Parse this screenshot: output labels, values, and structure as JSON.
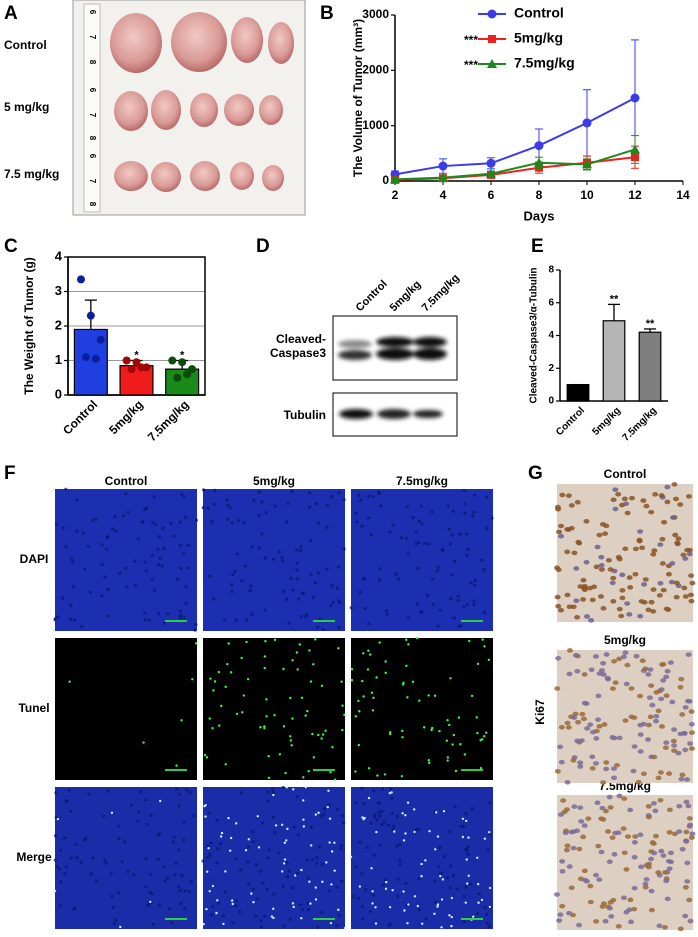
{
  "panel_letters": [
    "A",
    "B",
    "C",
    "D",
    "E",
    "F",
    "G"
  ],
  "photo": {
    "row_labels": [
      "Control",
      "5 mg/kg",
      "7.5 mg/kg"
    ],
    "ruler_labels": [
      "6",
      "7",
      "8"
    ]
  },
  "chart_data": [
    {
      "type": "line",
      "ylabel": "The Volume of Tumor (mm³)",
      "xlabel": "Days",
      "x": [
        2,
        4,
        6,
        8,
        10,
        12
      ],
      "xlim": [
        2,
        14
      ],
      "xticks": [
        2,
        4,
        6,
        8,
        10,
        12,
        14
      ],
      "ylim": [
        0,
        3000
      ],
      "yticks": [
        0,
        1000,
        2000,
        3000
      ],
      "series": [
        {
          "name": "Control",
          "color": "#3b3be8",
          "marker": "circle",
          "values": [
            120,
            270,
            320,
            640,
            1050,
            1500
          ],
          "errors": [
            60,
            130,
            100,
            300,
            600,
            1050
          ]
        },
        {
          "name": "5mg/kg",
          "color": "#f02020",
          "marker": "square",
          "values": [
            20,
            50,
            110,
            240,
            330,
            430
          ],
          "errors": [
            15,
            40,
            50,
            100,
            120,
            200
          ]
        },
        {
          "name": "7.5mg/kg",
          "color": "#1b8a1b",
          "marker": "triangle",
          "values": [
            30,
            60,
            130,
            330,
            300,
            570
          ],
          "errors": [
            20,
            40,
            50,
            100,
            100,
            250
          ]
        }
      ],
      "annotations": [
        {
          "series": "5mg/kg",
          "text": "***"
        },
        {
          "series": "7.5mg/kg",
          "text": "***"
        }
      ]
    },
    {
      "type": "bar",
      "ylabel": "The Weight of Tumor (g)",
      "categories": [
        "Control",
        "5mg/kg",
        "7.5mg/kg"
      ],
      "values": [
        1.9,
        0.85,
        0.75
      ],
      "errors": [
        0.85,
        0.15,
        0.25
      ],
      "points": [
        [
          3.35,
          2.3,
          1.6,
          1.1,
          1.05
        ],
        [
          1.0,
          0.95,
          0.8,
          0.75,
          0.8
        ],
        [
          1.0,
          0.95,
          0.75,
          0.5,
          0.6
        ]
      ],
      "colors": [
        "#1f3fe0",
        "#f01c1c",
        "#1a8a1a"
      ],
      "point_colors": [
        "#0a1f9e",
        "#a00808",
        "#0a4d0a"
      ],
      "ylim": [
        0,
        4
      ],
      "yticks": [
        0,
        1,
        2,
        3,
        4
      ],
      "grid": true,
      "frame": true,
      "annotations": [
        {
          "category": "5mg/kg",
          "text": "*"
        },
        {
          "category": "7.5mg/kg",
          "text": "*"
        }
      ]
    },
    {
      "type": "bar",
      "ylabel": "Cleaved-Caspase3/α-Tubulin",
      "categories": [
        "Control",
        "5mg/kg",
        "7.5mg/kg"
      ],
      "values": [
        1,
        4.9,
        4.2
      ],
      "errors": [
        0,
        1.0,
        0.2
      ],
      "colors": [
        "#000000",
        "#b5b5b5",
        "#7f7f7f"
      ],
      "ylim": [
        0,
        8
      ],
      "yticks": [
        0,
        2,
        4,
        6,
        8
      ],
      "grid": false,
      "frame": false,
      "annotations": [
        {
          "category": "5mg/kg",
          "text": "**"
        },
        {
          "category": "7.5mg/kg",
          "text": "**"
        }
      ]
    }
  ],
  "blot": {
    "lanes": [
      "Control",
      "5mg/kg",
      "7.5mg/kg"
    ],
    "rows": [
      [
        "Cleaved-",
        "Caspase3"
      ],
      [
        "Tubulin"
      ]
    ]
  },
  "tunel": {
    "columns": [
      "Control",
      "5mg/kg",
      "7.5mg/kg"
    ],
    "rows": [
      "DAPI",
      "Tunel",
      "Merge"
    ]
  },
  "ihc": {
    "labels": [
      "Control",
      "5mg/kg",
      "7.5mg/kg"
    ],
    "stain": "Ki67"
  }
}
